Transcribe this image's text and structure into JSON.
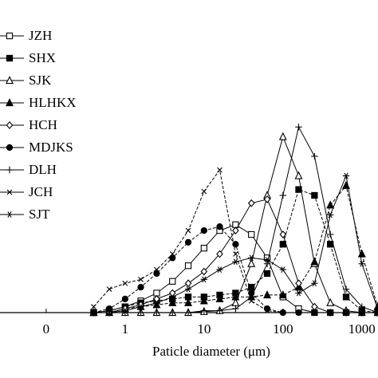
{
  "chart_data": {
    "type": "line",
    "x_label": "Paticle diameter (μm)",
    "log_x": true,
    "xlim": [
      0.026,
      1600
    ],
    "xticks": [
      {
        "value": 0.1,
        "label": "0"
      },
      1,
      10,
      100,
      1000
    ],
    "ylim": [
      0,
      16
    ],
    "legend": "upper left",
    "x": [
      0.4,
      0.63,
      1,
      1.58,
      2.51,
      3.98,
      6.31,
      10,
      15.8,
      25.1,
      39.8,
      63.1,
      100,
      158,
      251,
      398,
      631,
      1000,
      1585
    ],
    "series": [
      {
        "name": "JZH",
        "color": "#000000",
        "marker": "square-open",
        "values": [
          0,
          0.1,
          0.3,
          0.6,
          1.0,
          1.6,
          2.4,
          3.3,
          4.2,
          4.5,
          4.0,
          2.8,
          0.8,
          0.2,
          0,
          0,
          0,
          0,
          0
        ]
      },
      {
        "name": "SHX",
        "color": "#000000",
        "marker": "square",
        "values": [
          0,
          0.1,
          0.3,
          0.5,
          0.6,
          0.7,
          0.8,
          0.8,
          0.9,
          1.0,
          1.3,
          2.0,
          3.5,
          6.3,
          6.0,
          3.5,
          0.8,
          0.1,
          0
        ]
      },
      {
        "name": "SJK",
        "color": "#000000",
        "marker": "triangle-open",
        "values": [
          0,
          0,
          0,
          0,
          0,
          0,
          0,
          0.05,
          0.1,
          0.5,
          2.5,
          6.0,
          9.0,
          7.0,
          2.5,
          0.5,
          0.1,
          0,
          0
        ]
      },
      {
        "name": "HLHKX",
        "color": "#000000",
        "marker": "triangle",
        "values": [
          0,
          0,
          0.2,
          0.3,
          0.4,
          0.5,
          0.5,
          0.6,
          0.7,
          0.8,
          0.8,
          0.9,
          0.9,
          1.3,
          2.6,
          5.5,
          6.5,
          3.0,
          0.3
        ]
      },
      {
        "name": "HCH",
        "color": "#000000",
        "marker": "diamond-open",
        "values": [
          0,
          0,
          0.2,
          0.4,
          0.7,
          1.0,
          1.5,
          2.1,
          3.0,
          4.2,
          5.6,
          5.8,
          4.0,
          1.5,
          0.3,
          0,
          0,
          0,
          0
        ]
      },
      {
        "name": "MDJKS",
        "color": "#000000",
        "marker": "circle",
        "values": [
          0,
          0.2,
          0.7,
          1.3,
          2.0,
          2.8,
          3.6,
          4.2,
          4.4,
          3.5,
          1.0,
          0.2,
          0,
          0,
          0,
          0,
          0,
          0,
          0
        ]
      },
      {
        "name": "DLH",
        "color": "#000000",
        "marker": "plus",
        "values": [
          0,
          0,
          0,
          0,
          0,
          0,
          0,
          0.1,
          0.1,
          0.2,
          0.8,
          2.5,
          6.0,
          9.5,
          8.0,
          4.0,
          1.2,
          0.3,
          0
        ]
      },
      {
        "name": "JCH",
        "color": "#000000",
        "marker": "x",
        "values": [
          0.3,
          1.2,
          1.5,
          1.7,
          2.2,
          3.0,
          4.2,
          6.2,
          7.3,
          3.0,
          0.6,
          0.1,
          0,
          0,
          0,
          0,
          0,
          0,
          0
        ]
      },
      {
        "name": "SJT",
        "color": "#000000",
        "marker": "asterisk",
        "values": [
          0,
          0,
          0.1,
          0.3,
          0.5,
          0.8,
          1.2,
          1.7,
          2.2,
          2.6,
          2.8,
          2.7,
          2.2,
          1.0,
          1.5,
          5.0,
          7.0,
          2.5,
          0.2
        ]
      }
    ]
  }
}
